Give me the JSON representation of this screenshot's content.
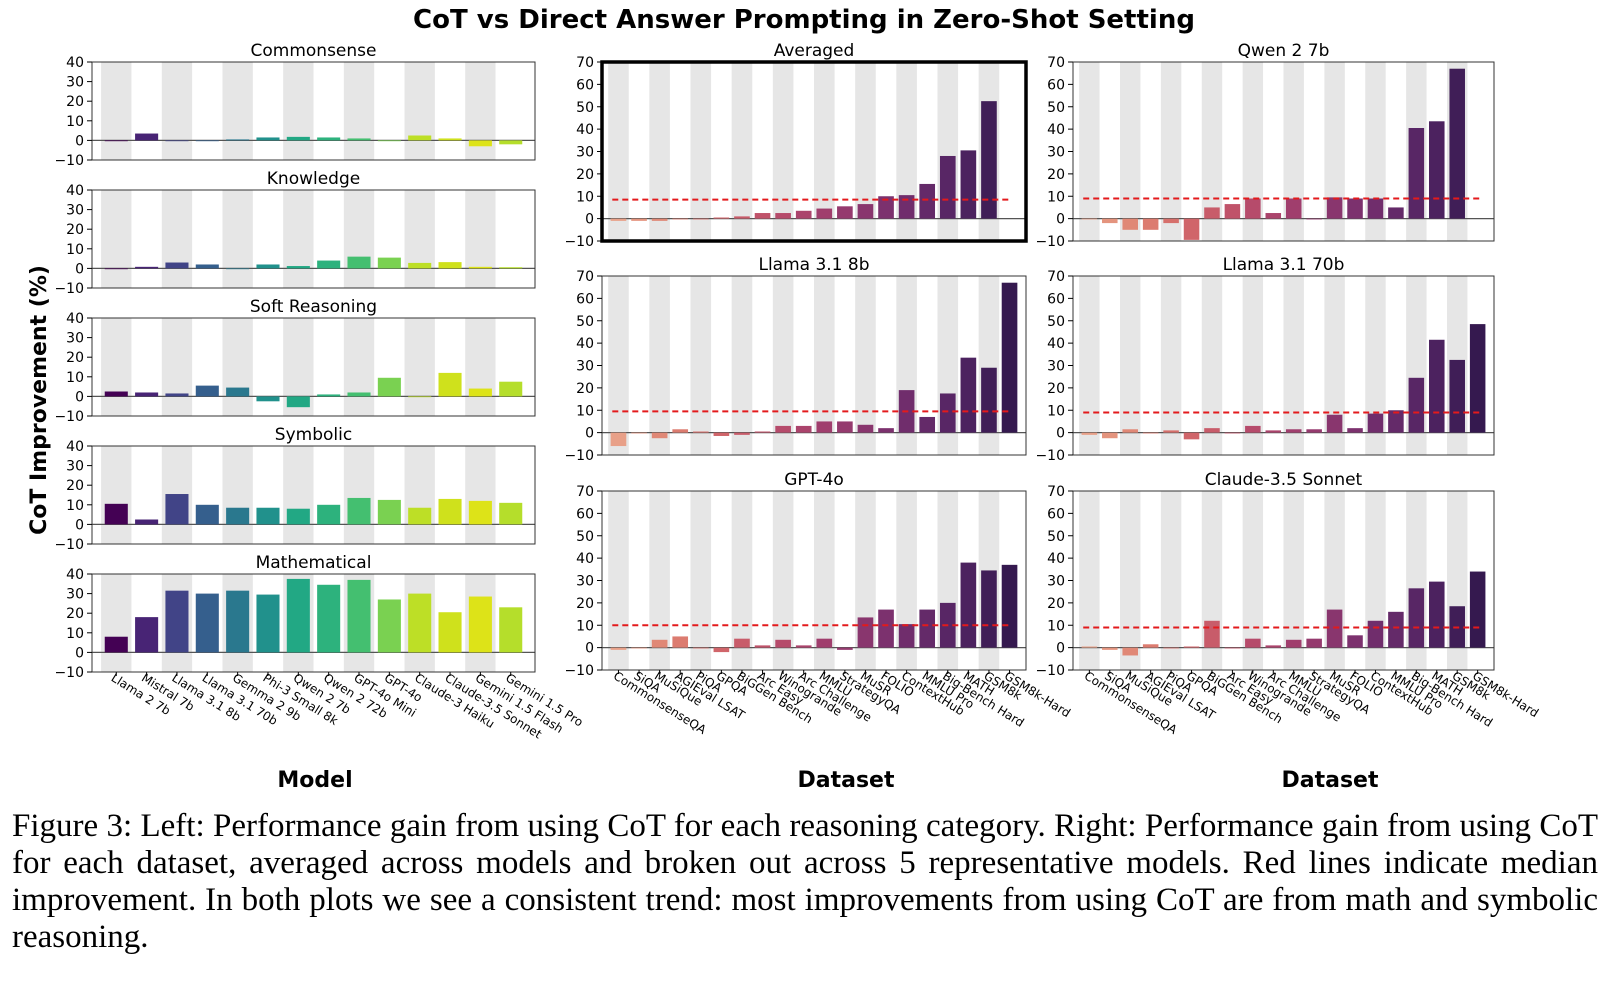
{
  "figure_title": "CoT vs Direct Answer Prompting in Zero-Shot Setting",
  "left_ylabel": "CoT Improvement (%)",
  "left_xlabel": "Model",
  "right_xlabel_1": "Dataset",
  "right_xlabel_2": "Dataset",
  "caption": "Figure 3: Left: Performance gain from using CoT for each reasoning category. Right: Performance gain from using CoT for each dataset, averaged across models and broken out across 5 representative models. Red lines indicate median improvement. In both plots we see a consistent trend: most improvements from using CoT are from math and symbolic reasoning.",
  "models": [
    "Llama 2 7b",
    "Mistral 7b",
    "Llama 3.1 8b",
    "Llama 3.1 70b",
    "Gemma 2 9b",
    "Phi-3 Small 8k",
    "Qwen 2 7b",
    "Qwen 2 72b",
    "GPT-4o Mini",
    "GPT-4o",
    "Claude-3 Haiku",
    "Claude-3.5 Sonnet",
    "Gemini 1.5 Flash",
    "Gemini 1.5 Pro"
  ],
  "model_colors": [
    "#440154",
    "#482475",
    "#414487",
    "#355f8d",
    "#2a788e",
    "#21918c",
    "#22a884",
    "#2db27d",
    "#44bf70",
    "#7ad151",
    "#bddf26",
    "#cfe11c",
    "#dde318",
    "#b5de2b"
  ],
  "datasets": [
    "CommonsenseQA",
    "SiQA",
    "MuSiQue",
    "AGIEval LSAT",
    "PiQA",
    "GPQA",
    "BiGGen Bench",
    "Arc Easy",
    "Winogrande",
    "Arc Challenge",
    "MMLU",
    "StrategyQA",
    "MuSR",
    "FOLIO",
    "ContextHub",
    "MMLU Pro",
    "Big-Bench Hard",
    "MATH",
    "GSM8k",
    "GSM8k-Hard"
  ],
  "dataset_colors": [
    "#e8a088",
    "#e4947e",
    "#e08876",
    "#dc7c70",
    "#d6706c",
    "#d0656a",
    "#c85c6a",
    "#c0536a",
    "#b64b6b",
    "#ab446c",
    "#a03e6d",
    "#953a6e",
    "#89366e",
    "#7c316e",
    "#702d6c",
    "#642a69",
    "#582665",
    "#4c225f",
    "#401e57",
    "#35194f"
  ],
  "chart_data": [
    {
      "type": "bar",
      "title": "Commonsense",
      "ylim": [
        -10,
        40
      ],
      "yticks": [
        -10,
        0,
        10,
        20,
        30,
        40
      ],
      "categories": [
        "Llama 2 7b",
        "Mistral 7b",
        "Llama 3.1 8b",
        "Llama 3.1 70b",
        "Gemma 2 9b",
        "Phi-3 Small 8k",
        "Qwen 2 7b",
        "Qwen 2 72b",
        "GPT-4o Mini",
        "GPT-4o",
        "Claude-3 Haiku",
        "Claude-3.5 Sonnet",
        "Gemini 1.5 Flash",
        "Gemini 1.5 Pro"
      ],
      "values": [
        0,
        3.5,
        0,
        0,
        0.5,
        1.5,
        1.8,
        1.5,
        1,
        0,
        2.5,
        1,
        -3,
        -2
      ],
      "grid": "alternating vertical bands"
    },
    {
      "type": "bar",
      "title": "Knowledge",
      "ylim": [
        -10,
        40
      ],
      "yticks": [
        -10,
        0,
        10,
        20,
        30,
        40
      ],
      "categories": [
        "Llama 2 7b",
        "Mistral 7b",
        "Llama 3.1 8b",
        "Llama 3.1 70b",
        "Gemma 2 9b",
        "Phi-3 Small 8k",
        "Qwen 2 7b",
        "Qwen 2 72b",
        "GPT-4o Mini",
        "GPT-4o",
        "Claude-3 Haiku",
        "Claude-3.5 Sonnet",
        "Gemini 1.5 Flash",
        "Gemini 1.5 Pro"
      ],
      "values": [
        0,
        0.8,
        3,
        2,
        0,
        2,
        1.2,
        4,
        6,
        5.5,
        2.8,
        3.2,
        0.8,
        0.6
      ],
      "grid": "alternating vertical bands"
    },
    {
      "type": "bar",
      "title": "Soft Reasoning",
      "ylim": [
        -10,
        40
      ],
      "yticks": [
        -10,
        0,
        10,
        20,
        30,
        40
      ],
      "categories": [
        "Llama 2 7b",
        "Mistral 7b",
        "Llama 3.1 8b",
        "Llama 3.1 70b",
        "Gemma 2 9b",
        "Phi-3 Small 8k",
        "Qwen 2 7b",
        "Qwen 2 72b",
        "GPT-4o Mini",
        "GPT-4o",
        "Claude-3 Haiku",
        "Claude-3.5 Sonnet",
        "Gemini 1.5 Flash",
        "Gemini 1.5 Pro"
      ],
      "values": [
        2.5,
        2,
        1.5,
        5.5,
        4.5,
        -2.5,
        -5.5,
        1,
        2,
        9.5,
        0,
        12,
        4,
        7.5
      ],
      "grid": "alternating vertical bands"
    },
    {
      "type": "bar",
      "title": "Symbolic",
      "ylim": [
        -10,
        40
      ],
      "yticks": [
        -10,
        0,
        10,
        20,
        30,
        40
      ],
      "categories": [
        "Llama 2 7b",
        "Mistral 7b",
        "Llama 3.1 8b",
        "Llama 3.1 70b",
        "Gemma 2 9b",
        "Phi-3 Small 8k",
        "Qwen 2 7b",
        "Qwen 2 72b",
        "GPT-4o Mini",
        "GPT-4o",
        "Claude-3 Haiku",
        "Claude-3.5 Sonnet",
        "Gemini 1.5 Flash",
        "Gemini 1.5 Pro"
      ],
      "values": [
        10.5,
        2.5,
        15.5,
        10,
        8.5,
        8.5,
        8,
        10,
        13.5,
        12.5,
        8.5,
        13,
        12,
        11
      ],
      "grid": "alternating vertical bands"
    },
    {
      "type": "bar",
      "title": "Mathematical",
      "ylim": [
        -10,
        40
      ],
      "yticks": [
        -10,
        0,
        10,
        20,
        30,
        40
      ],
      "categories": [
        "Llama 2 7b",
        "Mistral 7b",
        "Llama 3.1 8b",
        "Llama 3.1 70b",
        "Gemma 2 9b",
        "Phi-3 Small 8k",
        "Qwen 2 7b",
        "Qwen 2 72b",
        "GPT-4o Mini",
        "GPT-4o",
        "Claude-3 Haiku",
        "Claude-3.5 Sonnet",
        "Gemini 1.5 Flash",
        "Gemini 1.5 Pro"
      ],
      "values": [
        8,
        18,
        31.5,
        30,
        31.5,
        29.5,
        37.5,
        34.5,
        37,
        27,
        30,
        20.5,
        28.5,
        23
      ],
      "grid": "alternating vertical bands"
    },
    {
      "type": "bar",
      "title": "Averaged",
      "highlighted": true,
      "ylim": [
        -10,
        70
      ],
      "yticks": [
        -10,
        0,
        10,
        20,
        30,
        40,
        50,
        60,
        70
      ],
      "categories": [
        "CommonsenseQA",
        "SiQA",
        "MuSiQue",
        "AGIEval LSAT",
        "PiQA",
        "GPQA",
        "BiGGen Bench",
        "Arc Easy",
        "Winogrande",
        "Arc Challenge",
        "MMLU",
        "StrategyQA",
        "MuSR",
        "FOLIO",
        "ContextHub",
        "MMLU Pro",
        "Big-Bench Hard",
        "MATH",
        "GSM8k",
        "GSM8k-Hard"
      ],
      "values": [
        -1,
        -1,
        -1,
        0,
        0,
        0.5,
        1,
        2.5,
        2.5,
        3.5,
        4.5,
        5.5,
        6.5,
        10,
        10.5,
        15.5,
        28,
        30.5,
        52.5,
        null
      ],
      "median": 8.5,
      "grid": "alternating vertical bands"
    },
    {
      "type": "bar",
      "title": "Qwen 2 7b",
      "ylim": [
        -10,
        70
      ],
      "yticks": [
        -10,
        0,
        10,
        20,
        30,
        40,
        50,
        60,
        70
      ],
      "categories": [
        "CommonsenseQA",
        "SiQA",
        "MuSiQue",
        "AGIEval LSAT",
        "PiQA",
        "GPQA",
        "BiGGen Bench",
        "Arc Easy",
        "Winogrande",
        "Arc Challenge",
        "MMLU",
        "StrategyQA",
        "MuSR",
        "FOLIO",
        "ContextHub",
        "MMLU Pro",
        "Big-Bench Hard",
        "MATH",
        "GSM8k",
        "GSM8k-Hard"
      ],
      "values": [
        0,
        -2,
        -5,
        -5,
        -2,
        -9.5,
        5,
        6.5,
        9,
        2.5,
        9,
        0,
        9.5,
        9,
        9,
        5,
        40.5,
        43.5,
        67,
        null
      ],
      "median": 9,
      "grid": "alternating vertical bands"
    },
    {
      "type": "bar",
      "title": "Llama 3.1 8b",
      "ylim": [
        -10,
        70
      ],
      "yticks": [
        -10,
        0,
        10,
        20,
        30,
        40,
        50,
        60,
        70
      ],
      "categories": [
        "CommonsenseQA",
        "SiQA",
        "MuSiQue",
        "AGIEval LSAT",
        "PiQA",
        "GPQA",
        "BiGGen Bench",
        "Arc Easy",
        "Winogrande",
        "Arc Challenge",
        "MMLU",
        "StrategyQA",
        "MuSR",
        "FOLIO",
        "ContextHub",
        "MMLU Pro",
        "Big-Bench Hard",
        "MATH",
        "GSM8k",
        "GSM8k-Hard"
      ],
      "values": [
        -6,
        0,
        -2.5,
        1.5,
        0.5,
        -1.5,
        -1,
        0.5,
        3,
        3,
        5,
        5,
        3.5,
        2,
        19,
        7,
        17.5,
        33.5,
        29,
        67
      ],
      "median": 9.5,
      "grid": "alternating vertical bands"
    },
    {
      "type": "bar",
      "title": "Llama 3.1 70b",
      "ylim": [
        -10,
        70
      ],
      "yticks": [
        -10,
        0,
        10,
        20,
        30,
        40,
        50,
        60,
        70
      ],
      "categories": [
        "CommonsenseQA",
        "SiQA",
        "MuSiQue",
        "AGIEval LSAT",
        "PiQA",
        "GPQA",
        "BiGGen Bench",
        "Arc Easy",
        "Winogrande",
        "Arc Challenge",
        "MMLU",
        "StrategyQA",
        "MuSR",
        "FOLIO",
        "ContextHub",
        "MMLU Pro",
        "Big-Bench Hard",
        "MATH",
        "GSM8k",
        "GSM8k-Hard"
      ],
      "values": [
        -1,
        -2.5,
        1.5,
        0,
        1,
        -3,
        2,
        0,
        3,
        1,
        1.5,
        1.5,
        8,
        2,
        8.5,
        10,
        24.5,
        41.5,
        32.5,
        48.5
      ],
      "median": 9,
      "grid": "alternating vertical bands"
    },
    {
      "type": "bar",
      "title": "GPT-4o",
      "ylim": [
        -10,
        70
      ],
      "yticks": [
        -10,
        0,
        10,
        20,
        30,
        40,
        50,
        60,
        70
      ],
      "categories": [
        "CommonsenseQA",
        "SiQA",
        "MuSiQue",
        "AGIEval LSAT",
        "PiQA",
        "GPQA",
        "BiGGen Bench",
        "Arc Easy",
        "Winogrande",
        "Arc Challenge",
        "MMLU",
        "StrategyQA",
        "MuSR",
        "FOLIO",
        "ContextHub",
        "MMLU Pro",
        "Big-Bench Hard",
        "MATH",
        "GSM8k",
        "GSM8k-Hard"
      ],
      "values": [
        -1,
        0,
        3.5,
        5,
        0,
        -2,
        4,
        1,
        3.5,
        1,
        4,
        -1,
        13.5,
        17,
        10.5,
        17,
        20,
        38,
        34.5,
        37
      ],
      "median": 10,
      "grid": "alternating vertical bands"
    },
    {
      "type": "bar",
      "title": "Claude-3.5 Sonnet",
      "ylim": [
        -10,
        70
      ],
      "yticks": [
        -10,
        0,
        10,
        20,
        30,
        40,
        50,
        60,
        70
      ],
      "categories": [
        "CommonsenseQA",
        "SiQA",
        "MuSiQue",
        "AGIEval LSAT",
        "PiQA",
        "GPQA",
        "BiGGen Bench",
        "Arc Easy",
        "Winogrande",
        "Arc Challenge",
        "MMLU",
        "StrategyQA",
        "MuSR",
        "FOLIO",
        "ContextHub",
        "MMLU Pro",
        "Big-Bench Hard",
        "MATH",
        "GSM8k",
        "GSM8k-Hard"
      ],
      "values": [
        0.5,
        -1,
        -3.5,
        1.5,
        0,
        0.5,
        12,
        0,
        4,
        1,
        3.5,
        4,
        17,
        5.5,
        12,
        16,
        26.5,
        29.5,
        18.5,
        34
      ],
      "median": 9,
      "grid": "alternating vertical bands"
    }
  ]
}
